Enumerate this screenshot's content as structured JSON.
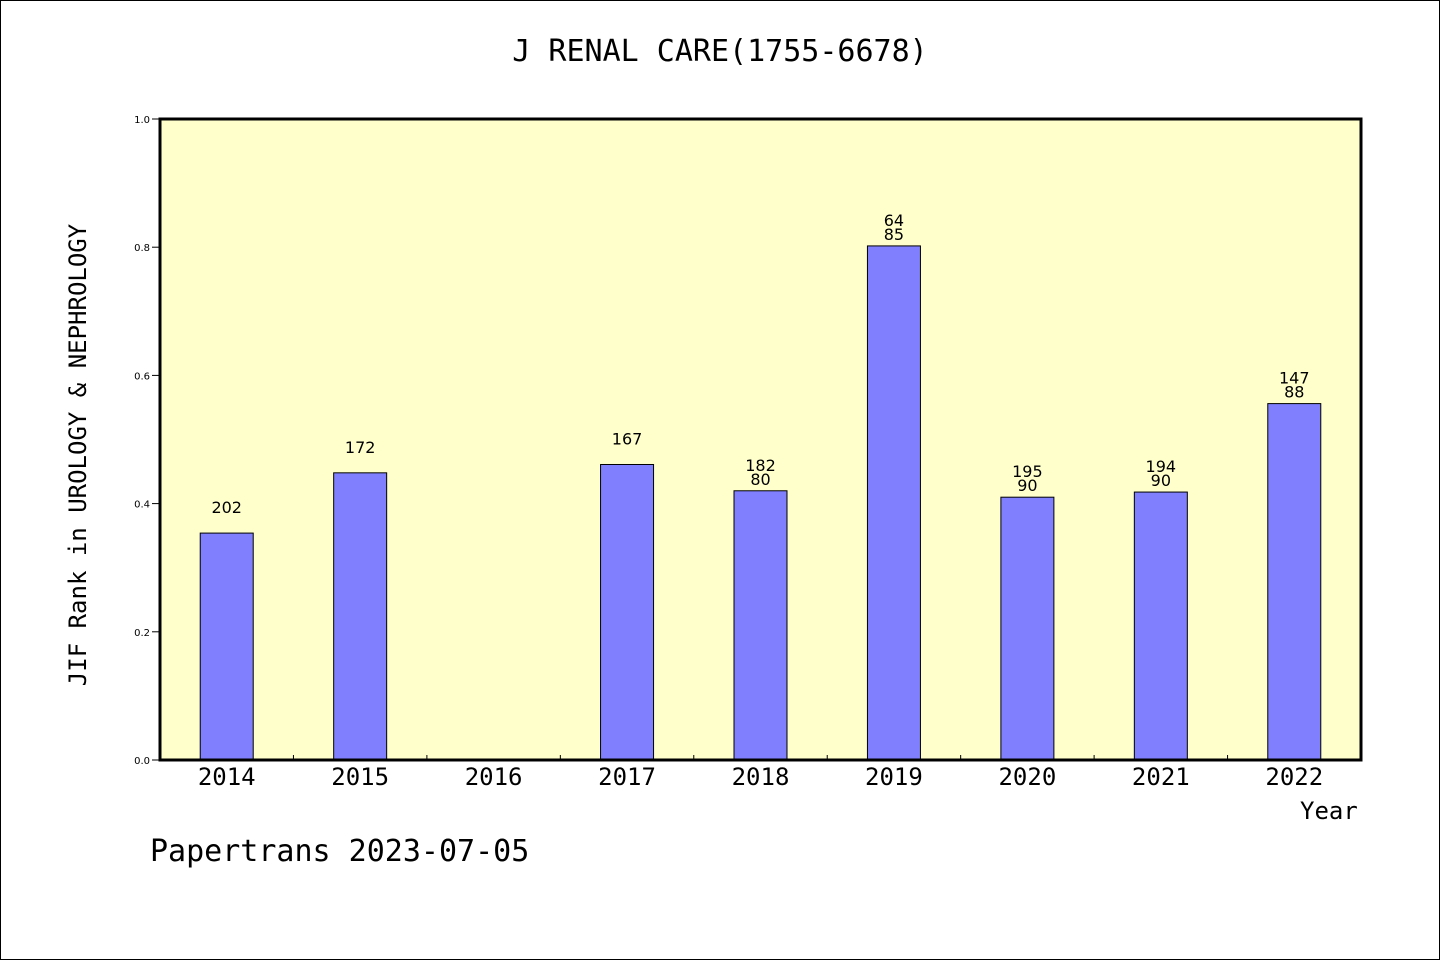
{
  "footer": "Papertrans 2023-07-05",
  "colors": {
    "plot_bg": "#ffffcc",
    "bar": "#8080ff",
    "axis": "#000000"
  },
  "chart_data": {
    "type": "bar",
    "title": "J RENAL CARE(1755-6678)",
    "xlabel": "Year",
    "ylabel": "JIF Rank in UROLOGY & NEPHROLOGY",
    "ylim": [
      0,
      1.0
    ],
    "yticks": [
      "0.0",
      "0.2",
      "0.4",
      "0.6",
      "0.8",
      "1.0"
    ],
    "grid": false,
    "categories": [
      "2014",
      "2015",
      "2016",
      "2017",
      "2018",
      "2019",
      "2020",
      "2021",
      "2022"
    ],
    "values": [
      0.354,
      0.448,
      null,
      0.461,
      0.42,
      0.802,
      0.41,
      0.418,
      0.556
    ],
    "annotations": [
      [
        "202"
      ],
      [
        "172"
      ],
      [],
      [
        "167"
      ],
      [
        "182",
        "80"
      ],
      [
        "64",
        "85"
      ],
      [
        "195",
        "90"
      ],
      [
        "194",
        "90"
      ],
      [
        "147",
        "88"
      ]
    ]
  }
}
